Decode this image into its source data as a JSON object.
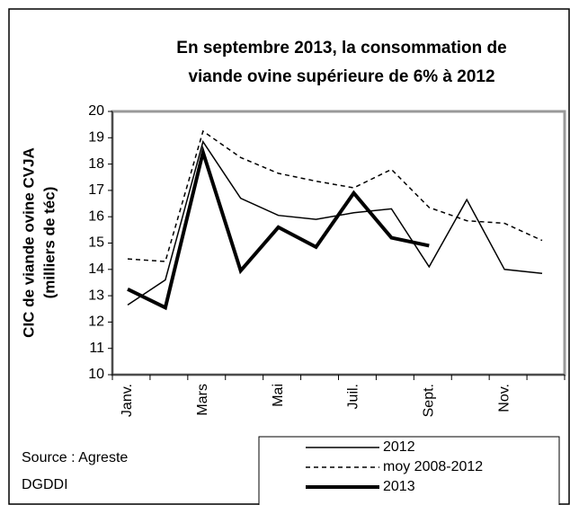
{
  "chart_data": {
    "type": "line",
    "title": [
      "En septembre 2013,  la consommation de",
      "viande ovine  supérieure de 6% à 2012"
    ],
    "y_label": [
      "CIC de viande ovine CVJA",
      "(milliers de téc)"
    ],
    "source": [
      "Source : Agreste",
      "DGDDI"
    ],
    "categories": [
      "Janv.",
      null,
      "Mars",
      null,
      "Mai",
      null,
      "Juil.",
      null,
      "Sept.",
      null,
      "Nov.",
      null
    ],
    "ylim": [
      10,
      20
    ],
    "yticks": [
      10,
      11,
      12,
      13,
      14,
      15,
      16,
      17,
      18,
      19,
      20
    ],
    "series": [
      {
        "name": "2012",
        "color": "#000000",
        "line_width": 1.5,
        "style": "solid",
        "values": [
          12.65,
          13.6,
          18.85,
          16.7,
          16.05,
          15.9,
          16.15,
          16.3,
          14.1,
          16.65,
          14.0,
          13.85
        ]
      },
      {
        "name": "moy 2008-2012",
        "color": "#000000",
        "line_width": 1.5,
        "style": "dashed",
        "values": [
          14.4,
          14.3,
          19.25,
          18.25,
          17.65,
          17.35,
          17.1,
          17.8,
          16.35,
          15.85,
          15.75,
          15.1
        ]
      },
      {
        "name": "2013",
        "color": "#000000",
        "line_width": 4,
        "style": "solid",
        "values": [
          13.25,
          12.55,
          18.45,
          13.95,
          15.6,
          14.85,
          16.9,
          15.2,
          14.9,
          null,
          null,
          null
        ]
      }
    ]
  }
}
